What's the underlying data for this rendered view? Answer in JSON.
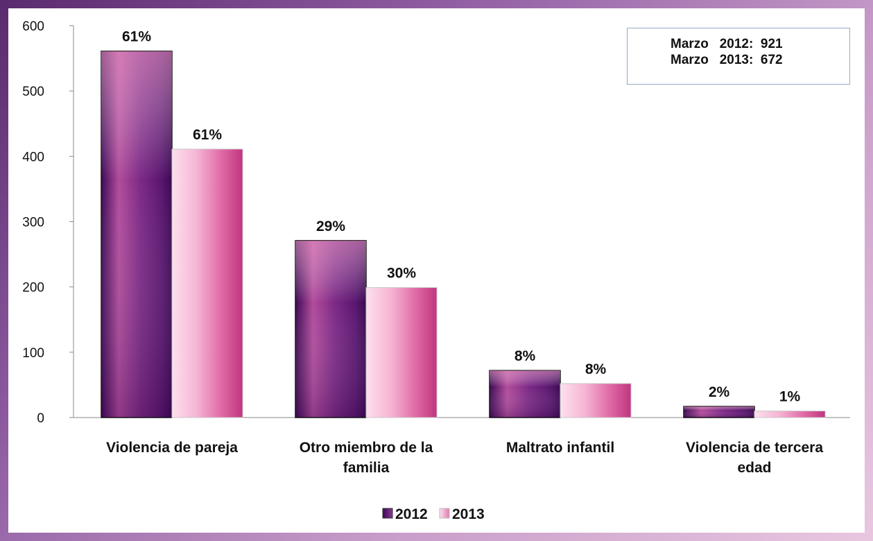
{
  "chart_data": {
    "type": "bar",
    "categories": [
      "Violencia de pareja",
      "Otro miembro de la familia",
      "Maltrato infantil",
      "Violencia de tercera edad"
    ],
    "category_lines": [
      [
        "Violencia de pareja"
      ],
      [
        "Otro miembro de la",
        "familia"
      ],
      [
        "Maltrato infantil"
      ],
      [
        "Violencia de tercera",
        "edad"
      ]
    ],
    "series": [
      {
        "name": "2012",
        "values": [
          561,
          271,
          72,
          17
        ],
        "labels": [
          "61%",
          "29%",
          "8%",
          "2%"
        ],
        "color": "#6a1f7a"
      },
      {
        "name": "2013",
        "values": [
          411,
          199,
          52,
          10
        ],
        "labels": [
          "61%",
          "30%",
          "8%",
          "1%"
        ],
        "color": "#e07aae"
      }
    ],
    "ylim": [
      0,
      600
    ],
    "yticks": [
      "0",
      "100",
      "200",
      "300",
      "400",
      "500",
      "600"
    ],
    "legend": "bottom",
    "grid": false
  },
  "info_box": {
    "line1": "Marzo   2012:  921",
    "line2": "Marzo   2013:  672"
  },
  "colors": {
    "bar_2012_dark": "#3e0a55",
    "bar_2012_light": "#c45aa8",
    "bar_2013_light": "#fde0ee",
    "bar_2013_dark": "#c83d86"
  }
}
